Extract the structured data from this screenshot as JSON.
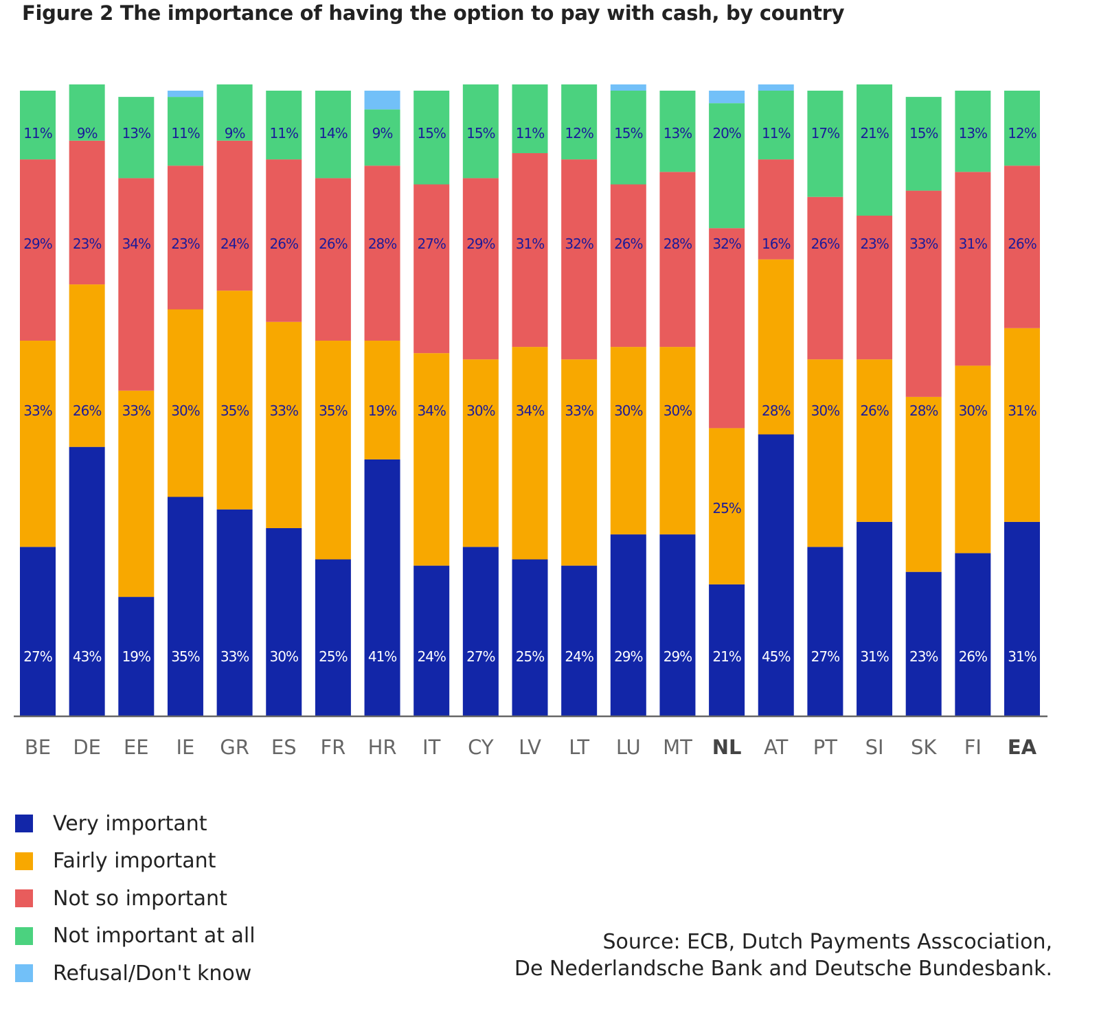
{
  "chart_data": {
    "type": "bar",
    "stacked": true,
    "title": "Figure 2  The importance of having the option to pay with cash, by country",
    "categories": [
      "BE",
      "DE",
      "EE",
      "IE",
      "GR",
      "ES",
      "FR",
      "HR",
      "IT",
      "CY",
      "LV",
      "LT",
      "LU",
      "MT",
      "NL",
      "AT",
      "PT",
      "SI",
      "SK",
      "FI",
      "EA"
    ],
    "bold_categories": [
      "NL",
      "EA"
    ],
    "unit": "%",
    "ylim": [
      0,
      100
    ],
    "grid": false,
    "legend_position": "bottom-left",
    "series": [
      {
        "name": "Very important",
        "color": "#1226a8",
        "label_color": "#ffffff",
        "labeled": true,
        "values": [
          27,
          43,
          19,
          35,
          33,
          30,
          25,
          41,
          24,
          27,
          25,
          24,
          29,
          29,
          21,
          45,
          27,
          31,
          23,
          26,
          31
        ]
      },
      {
        "name": "Fairly important",
        "color": "#f8a800",
        "label_color": "#1a1a9a",
        "labeled": true,
        "values": [
          33,
          26,
          33,
          30,
          35,
          33,
          35,
          19,
          34,
          30,
          34,
          33,
          30,
          30,
          25,
          28,
          30,
          26,
          28,
          30,
          31
        ]
      },
      {
        "name": "Not so important",
        "color": "#e85c5c",
        "label_color": "#1a1a9a",
        "labeled": true,
        "values": [
          29,
          23,
          34,
          23,
          24,
          26,
          26,
          28,
          27,
          29,
          31,
          32,
          26,
          28,
          32,
          16,
          26,
          23,
          33,
          31,
          26
        ]
      },
      {
        "name": "Not important at all",
        "color": "#4bd27f",
        "label_color": "#1a1a9a",
        "labeled": true,
        "values": [
          11,
          9,
          13,
          11,
          9,
          11,
          14,
          9,
          15,
          15,
          11,
          12,
          15,
          13,
          20,
          11,
          17,
          21,
          15,
          13,
          12
        ]
      },
      {
        "name": "Refusal/Don't know",
        "color": "#72c0f8",
        "labeled": false,
        "values": [
          0,
          0,
          0,
          1,
          0,
          0,
          0,
          3,
          0,
          0,
          0,
          0,
          1,
          0,
          2,
          1,
          0,
          0,
          0,
          0,
          0
        ]
      }
    ],
    "source": [
      "Source: ECB, Dutch Payments Asscociation,",
      "De Nederlandsche Bank and Deutsche Bundesbank."
    ]
  }
}
